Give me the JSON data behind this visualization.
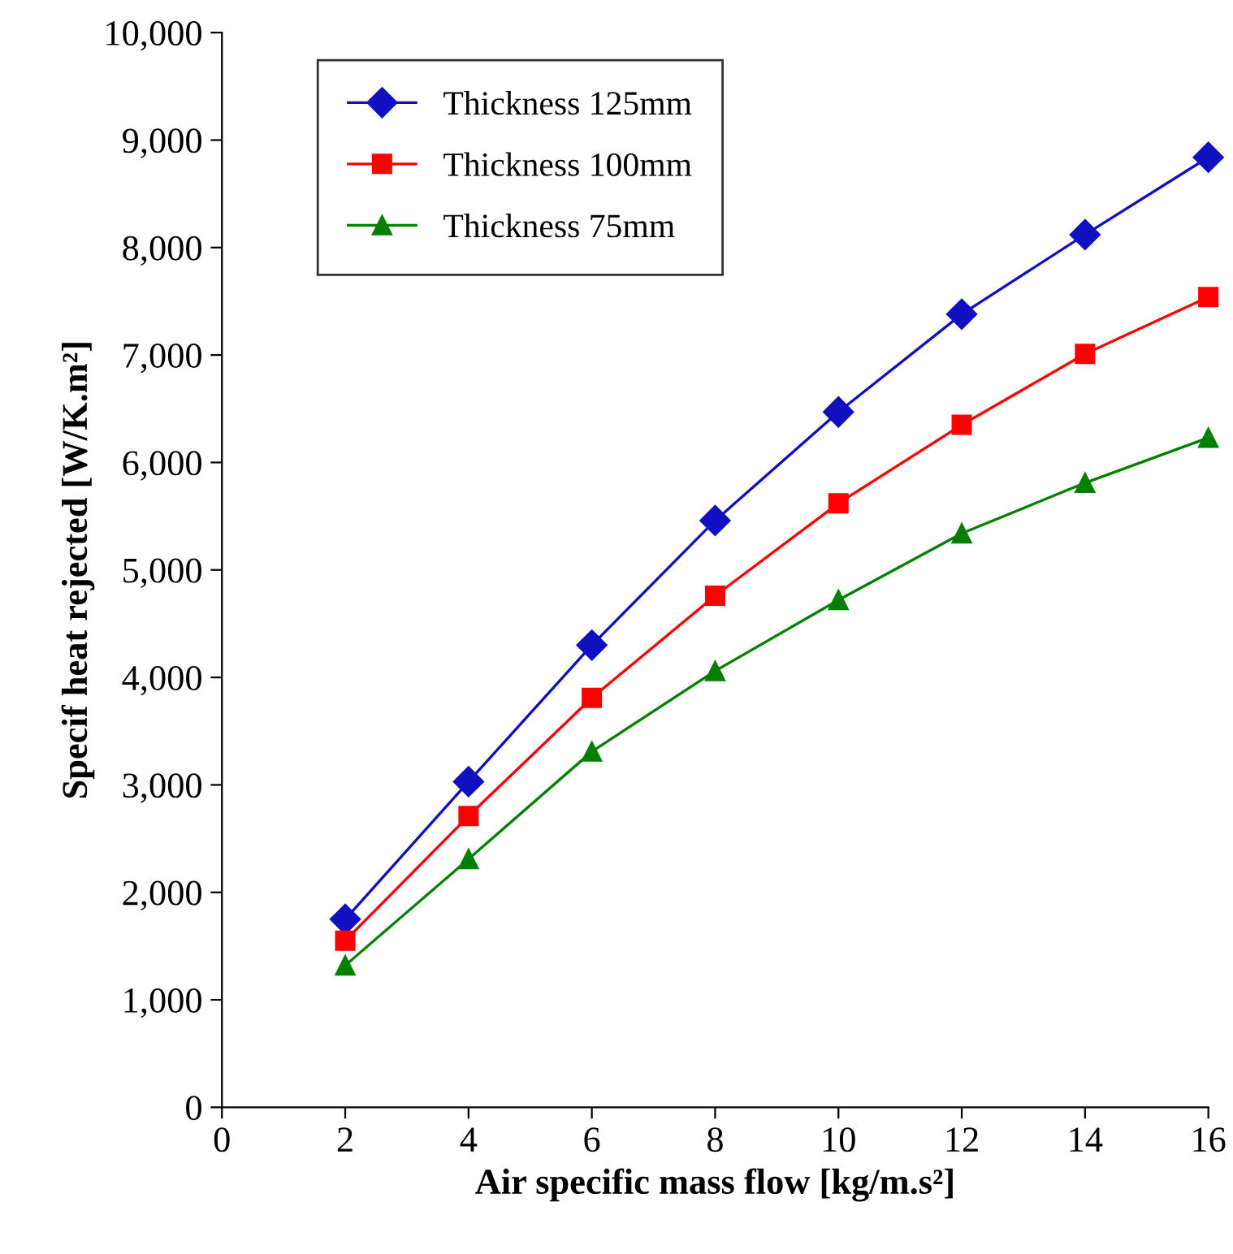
{
  "chart_data": {
    "type": "line",
    "xlabel": "Air specific mass flow [kg/m.s²]",
    "ylabel": "Specif heat rejected [W/K.m²]",
    "x": [
      2,
      4,
      6,
      8,
      10,
      12,
      14,
      16
    ],
    "series": [
      {
        "name": "Thickness 125mm",
        "color": "#1010c0",
        "marker": "diamond",
        "values": [
          1750,
          3030,
          4300,
          5460,
          6470,
          7380,
          8120,
          8840
        ]
      },
      {
        "name": "Thickness 100mm",
        "color": "#ff0000",
        "marker": "square",
        "values": [
          1550,
          2710,
          3810,
          4760,
          5620,
          6350,
          7010,
          7540
        ]
      },
      {
        "name": "Thickness 75mm",
        "color": "#008000",
        "marker": "triangle",
        "values": [
          1320,
          2310,
          3310,
          4060,
          4720,
          5340,
          5810,
          6230
        ]
      }
    ],
    "xlim": [
      0,
      16
    ],
    "xticks": [
      0,
      2,
      4,
      6,
      8,
      10,
      12,
      14,
      16
    ],
    "ylim": [
      0,
      10000
    ],
    "yticks": [
      {
        "value": 0,
        "label": "0"
      },
      {
        "value": 1000,
        "label": "1,000"
      },
      {
        "value": 2000,
        "label": "2,000"
      },
      {
        "value": 3000,
        "label": "3,000"
      },
      {
        "value": 4000,
        "label": "4,000"
      },
      {
        "value": 5000,
        "label": "5,000"
      },
      {
        "value": 6000,
        "label": "6,000"
      },
      {
        "value": 7000,
        "label": "7,000"
      },
      {
        "value": 8000,
        "label": "8,000"
      },
      {
        "value": 9000,
        "label": "9,000"
      },
      {
        "value": 10000,
        "label": "10,000"
      }
    ],
    "grid": false,
    "legend": "top left",
    "line_style": "solid"
  }
}
